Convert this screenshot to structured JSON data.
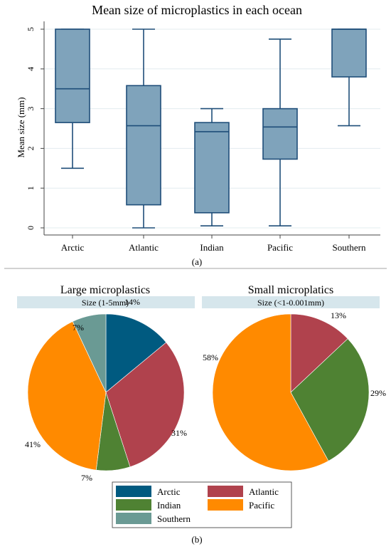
{
  "colors": {
    "box_fill": "#7fa3bb",
    "box_stroke": "#1f4e79",
    "grid": "#e3ecef",
    "strip": "#d6e6ec",
    "Arctic": "#005a80",
    "Atlantic": "#b0424d",
    "Indian": "#4f8233",
    "Pacific": "#ff8a00",
    "Southern": "#6a9a94"
  },
  "chart_data": [
    {
      "type": "box",
      "title": "Mean size of microplastics in each ocean",
      "ylabel": "Mean size (mm)",
      "xlabel": "",
      "ylim": [
        0,
        5
      ],
      "yticks": [
        "0",
        "1",
        "2",
        "3",
        "4",
        "5"
      ],
      "grid": true,
      "caption": "(a)",
      "categories": [
        "Arctic",
        "Atlantic",
        "Indian",
        "Pacific",
        "Southern"
      ],
      "boxes": [
        {
          "min": 1.5,
          "q1": 2.65,
          "median": 3.5,
          "q3": 5.0,
          "max": 5.0
        },
        {
          "min": 0.0,
          "q1": 0.58,
          "median": 2.57,
          "q3": 3.58,
          "max": 5.0
        },
        {
          "min": 0.05,
          "q1": 0.38,
          "median": 2.42,
          "q3": 2.65,
          "max": 3.0
        },
        {
          "min": 0.05,
          "q1": 1.73,
          "median": 2.54,
          "q3": 3.0,
          "max": 4.75
        },
        {
          "min": 2.57,
          "q1": 3.8,
          "median": 5.0,
          "q3": 5.0,
          "max": 5.0
        }
      ]
    },
    {
      "type": "pie",
      "title": "Large microplastics",
      "subtitle": "Size (1-5mm)",
      "slices": [
        {
          "name": "Arctic",
          "value": 14,
          "label": "14%"
        },
        {
          "name": "Atlantic",
          "value": 31,
          "label": "31%"
        },
        {
          "name": "Indian",
          "value": 7,
          "label": "7%"
        },
        {
          "name": "Pacific",
          "value": 41,
          "label": "41%"
        },
        {
          "name": "Southern",
          "value": 7,
          "label": "7%"
        }
      ]
    },
    {
      "type": "pie",
      "title": "Small microplatics",
      "subtitle": "Size (<1-0.001mm)",
      "slices": [
        {
          "name": "Atlantic",
          "value": 13,
          "label": "13%"
        },
        {
          "name": "Indian",
          "value": 29,
          "label": "29%"
        },
        {
          "name": "Pacific",
          "value": 58,
          "label": "58%"
        }
      ]
    }
  ],
  "legend": {
    "items": [
      {
        "name": "Arctic",
        "label": "Arctic"
      },
      {
        "name": "Atlantic",
        "label": "Atlantic"
      },
      {
        "name": "Indian",
        "label": "Indian"
      },
      {
        "name": "Pacific",
        "label": "Pacific"
      },
      {
        "name": "Southern",
        "label": "Southern"
      }
    ]
  },
  "caption_b": "(b)"
}
